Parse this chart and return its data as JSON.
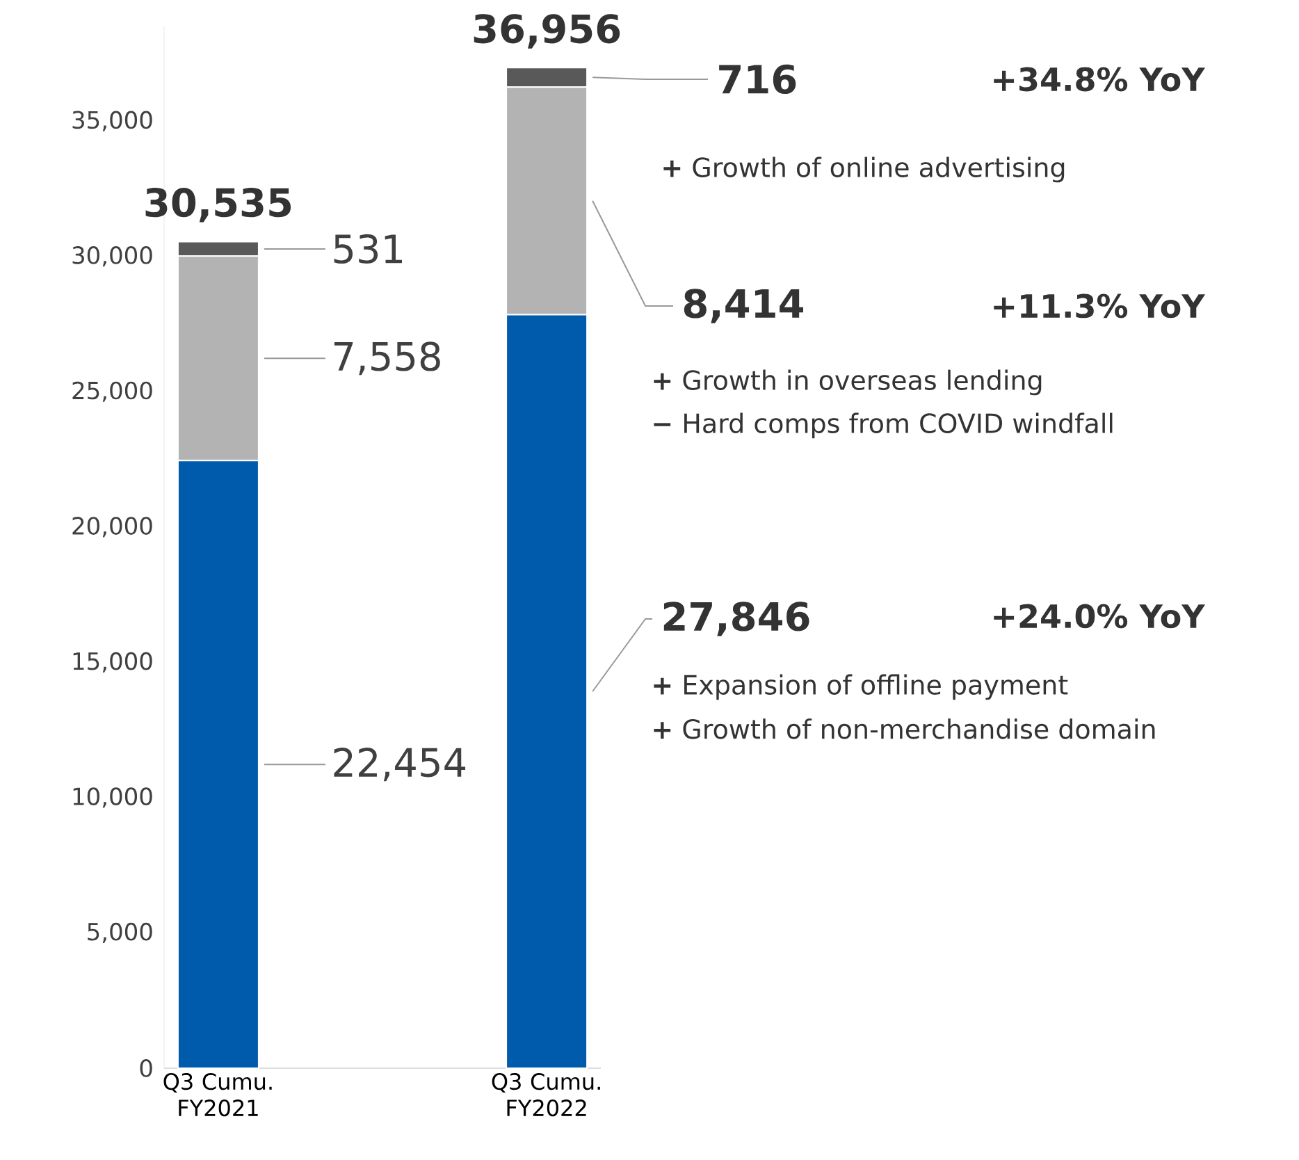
{
  "chart_data": {
    "type": "bar",
    "stacked": true,
    "categories": [
      "Q3 Cumu. FY2021",
      "Q3 Cumu. FY2022"
    ],
    "series": [
      {
        "color": "#005bac",
        "values": [
          22454,
          27846
        ],
        "value_labels": [
          "22,454",
          "27,846"
        ]
      },
      {
        "color": "#b3b3b3",
        "values": [
          7558,
          8414
        ],
        "value_labels": [
          "7,558",
          "8,414"
        ]
      },
      {
        "color": "#595959",
        "values": [
          531,
          716
        ],
        "value_labels": [
          "531",
          "716"
        ]
      }
    ],
    "ylim": [
      0,
      38500
    ],
    "yticks": [
      0,
      {
        "value": 5000,
        "label": "5,000"
      },
      {
        "value": 10000,
        "label": "10,000"
      },
      {
        "value": 15000,
        "label": "15,000"
      },
      {
        "value": 20000,
        "label": "20,000"
      },
      {
        "value": 25000,
        "label": "25,000"
      },
      {
        "value": 30000,
        "label": "30,000"
      },
      {
        "value": 35000,
        "label": "35,000"
      }
    ],
    "annotations": [
      {
        "text": "30,535",
        "x": "Q3 Cumu. FY2021",
        "y": 30535
      },
      {
        "text": "36,956",
        "x": "Q3 Cumu. FY2022",
        "y": 36956
      },
      "+34.8% YoY",
      "**+** Growth of online advertising",
      "+11.3% YoY",
      "**+** Growth in overseas lending",
      "**−** Hard comps from COVID windfall",
      "+24.0% YoY",
      "**+** Expansion of offline payment",
      "**+** Growth of non-merchandise domain"
    ]
  }
}
